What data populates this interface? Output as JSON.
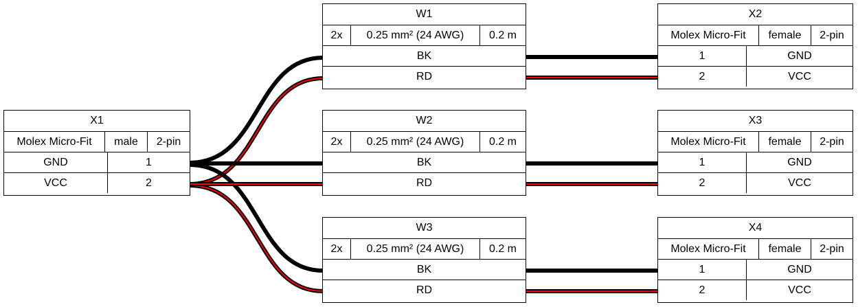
{
  "connectors": {
    "x1": {
      "name": "X1",
      "type": "Molex Micro-Fit",
      "gender": "male",
      "pins": "2-pin",
      "rows": [
        {
          "label": "GND",
          "pin": "1"
        },
        {
          "label": "VCC",
          "pin": "2"
        }
      ]
    },
    "x2": {
      "name": "X2",
      "type": "Molex Micro-Fit",
      "gender": "female",
      "pins": "2-pin",
      "rows": [
        {
          "pin": "1",
          "label": "GND"
        },
        {
          "pin": "2",
          "label": "VCC"
        }
      ]
    },
    "x3": {
      "name": "X3",
      "type": "Molex Micro-Fit",
      "gender": "female",
      "pins": "2-pin",
      "rows": [
        {
          "pin": "1",
          "label": "GND"
        },
        {
          "pin": "2",
          "label": "VCC"
        }
      ]
    },
    "x4": {
      "name": "X4",
      "type": "Molex Micro-Fit",
      "gender": "female",
      "pins": "2-pin",
      "rows": [
        {
          "pin": "1",
          "label": "GND"
        },
        {
          "pin": "2",
          "label": "VCC"
        }
      ]
    }
  },
  "cables": {
    "w1": {
      "name": "W1",
      "count": "2x",
      "gauge": "0.25 mm² (24 AWG)",
      "length": "0.2 m",
      "wires": [
        {
          "color": "BK"
        },
        {
          "color": "RD"
        }
      ]
    },
    "w2": {
      "name": "W2",
      "count": "2x",
      "gauge": "0.25 mm² (24 AWG)",
      "length": "0.2 m",
      "wires": [
        {
          "color": "BK"
        },
        {
          "color": "RD"
        }
      ]
    },
    "w3": {
      "name": "W3",
      "count": "2x",
      "gauge": "0.25 mm² (24 AWG)",
      "length": "0.2 m",
      "wires": [
        {
          "color": "BK"
        },
        {
          "color": "RD"
        }
      ]
    }
  },
  "colors": {
    "BK": "#000000",
    "RD": "#ff0000"
  }
}
